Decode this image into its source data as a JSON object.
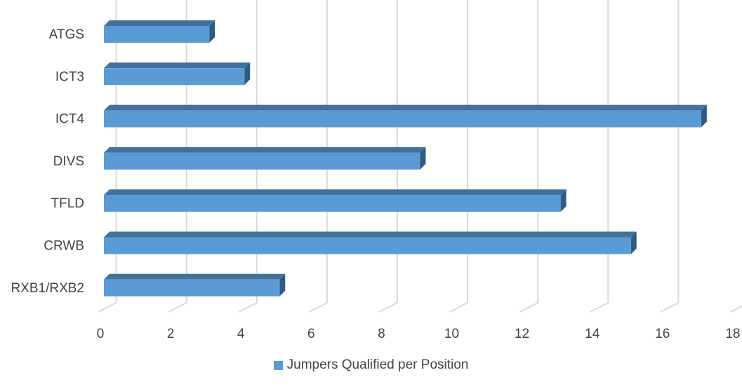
{
  "chart_data": {
    "type": "bar",
    "orientation": "horizontal",
    "style": "3d",
    "categories": [
      "ATGS",
      "ICT3",
      "ICT4",
      "DIVS",
      "TFLD",
      "CRWB",
      "RXB1/RXB2"
    ],
    "series": [
      {
        "name": "Jumpers Qualified per Position",
        "values": [
          3,
          4,
          17,
          9,
          13,
          15,
          5
        ]
      }
    ],
    "xlim": [
      0,
      18
    ],
    "xticks": [
      0,
      2,
      4,
      6,
      8,
      10,
      12,
      14,
      16,
      18
    ],
    "grid": true,
    "legend_position": "bottom",
    "colors": {
      "bar_front": "#5B9BD5",
      "bar_top": "#41719C",
      "bar_side": "#2E5B83",
      "grid": "#D9D9D9",
      "text": "#444444"
    }
  }
}
